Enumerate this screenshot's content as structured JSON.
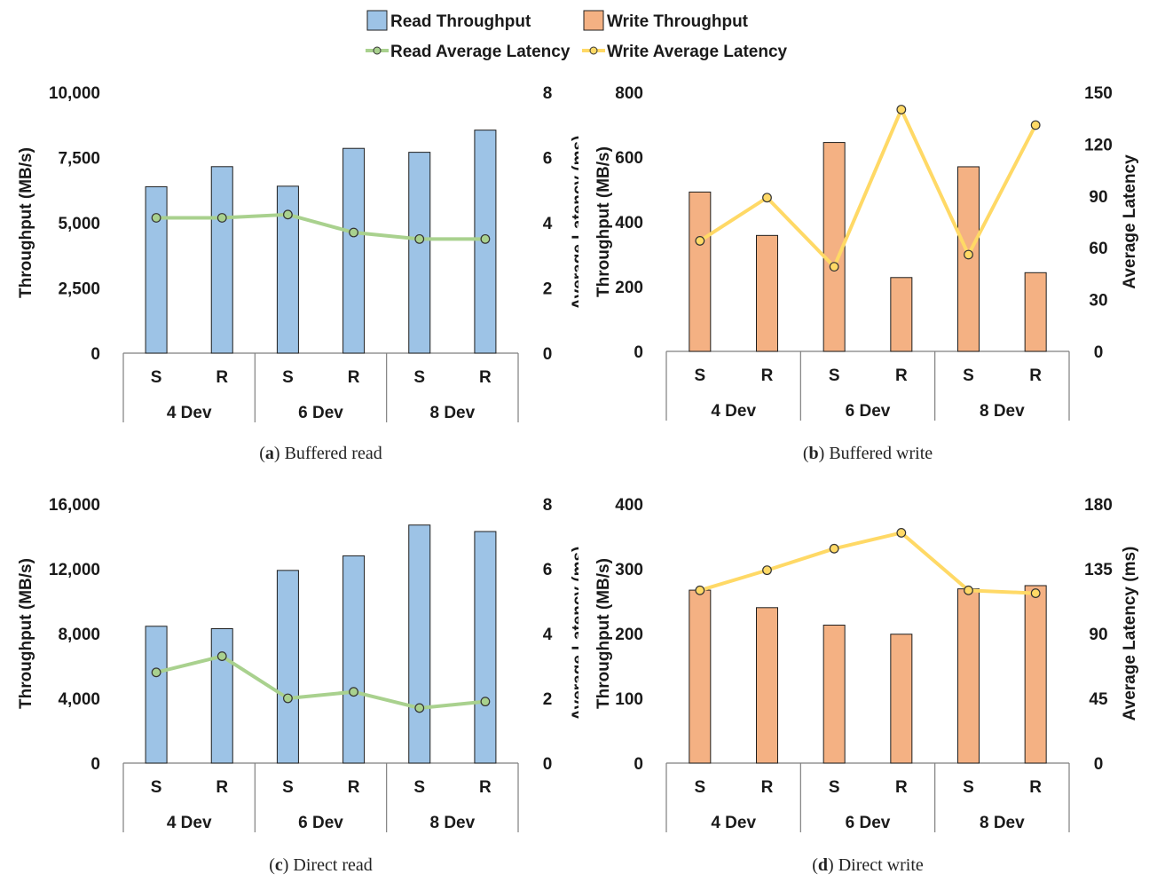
{
  "legend": {
    "read_throughput": "Read Throughput",
    "write_throughput": "Write Throughput",
    "read_latency": "Read Average Latency",
    "write_latency": "Write Average Latency"
  },
  "colors": {
    "read_bar": "#9dc3e6",
    "write_bar": "#f4b183",
    "read_line": "#a9d18e",
    "write_line": "#ffd966",
    "bar_stroke": "#1f1f1f"
  },
  "chart_data": [
    {
      "id": "a",
      "type": "bar",
      "caption_letter": "a",
      "caption_text": "Buffered read",
      "bar_series": "Read Throughput",
      "line_series": "Read Average Latency",
      "categories": [
        "S",
        "R",
        "S",
        "R",
        "S",
        "R"
      ],
      "groups": [
        "4 Dev",
        "6 Dev",
        "8 Dev"
      ],
      "values": [
        6380,
        7150,
        6400,
        7850,
        7700,
        8550
      ],
      "latency": [
        4.15,
        4.15,
        4.25,
        3.7,
        3.5,
        3.5
      ],
      "ylabel": "Throughput (MB/s)",
      "y2label": "Average Latency  (ms)",
      "ylim": [
        0,
        10000
      ],
      "yticks": [
        "10,000",
        "7,500",
        "5,000",
        "2,500",
        "0"
      ],
      "y2lim": [
        0,
        8
      ],
      "y2ticks": [
        "8",
        "6",
        "4",
        "2",
        "0"
      ]
    },
    {
      "id": "b",
      "type": "bar",
      "caption_letter": "b",
      "caption_text": "Buffered write",
      "bar_series": "Write Throughput",
      "line_series": "Write Average Latency",
      "categories": [
        "S",
        "R",
        "S",
        "R",
        "S",
        "R"
      ],
      "groups": [
        "4 Dev",
        "6 Dev",
        "8 Dev"
      ],
      "values": [
        492,
        358,
        645,
        228,
        570,
        243
      ],
      "latency": [
        64,
        89,
        49,
        140,
        56,
        131
      ],
      "ylabel": "Throughput (MB/s)",
      "y2label": "Average Latency",
      "ylim": [
        0,
        800
      ],
      "yticks": [
        "800",
        "600",
        "400",
        "200",
        "0"
      ],
      "y2lim": [
        0,
        150
      ],
      "y2ticks": [
        "150",
        "120",
        "90",
        "60",
        "30",
        "0"
      ]
    },
    {
      "id": "c",
      "type": "bar",
      "caption_letter": "c",
      "caption_text": "Direct read",
      "bar_series": "Read Throughput",
      "line_series": "Read Average Latency",
      "categories": [
        "S",
        "R",
        "S",
        "R",
        "S",
        "R"
      ],
      "groups": [
        "4 Dev",
        "6 Dev",
        "8 Dev"
      ],
      "values": [
        8450,
        8300,
        11900,
        12800,
        14700,
        14300
      ],
      "latency": [
        2.8,
        3.3,
        2.0,
        2.2,
        1.7,
        1.9
      ],
      "ylabel": "Throughput (MB/s)",
      "y2label": "Average Latency  (ms)",
      "ylim": [
        0,
        16000
      ],
      "yticks": [
        "16,000",
        "12,000",
        "8,000",
        "4,000",
        "0"
      ],
      "y2lim": [
        0,
        8
      ],
      "y2ticks": [
        "8",
        "6",
        "4",
        "2",
        "0"
      ]
    },
    {
      "id": "d",
      "type": "bar",
      "caption_letter": "d",
      "caption_text": "Direct write",
      "bar_series": "Write Throughput",
      "line_series": "Write Average Latency",
      "categories": [
        "S",
        "R",
        "S",
        "R",
        "S",
        "R"
      ],
      "groups": [
        "4 Dev",
        "6 Dev",
        "8 Dev"
      ],
      "values": [
        267,
        240,
        213,
        199,
        269,
        274
      ],
      "latency": [
        120,
        134,
        149,
        160,
        120,
        118
      ],
      "ylabel": "Throughput (MB/s)",
      "y2label": "Average Latency  (ms)",
      "ylim": [
        0,
        400
      ],
      "yticks": [
        "400",
        "300",
        "200",
        "100",
        "0"
      ],
      "y2lim": [
        0,
        180
      ],
      "y2ticks": [
        "180",
        "135",
        "90",
        "45",
        "0"
      ]
    }
  ]
}
